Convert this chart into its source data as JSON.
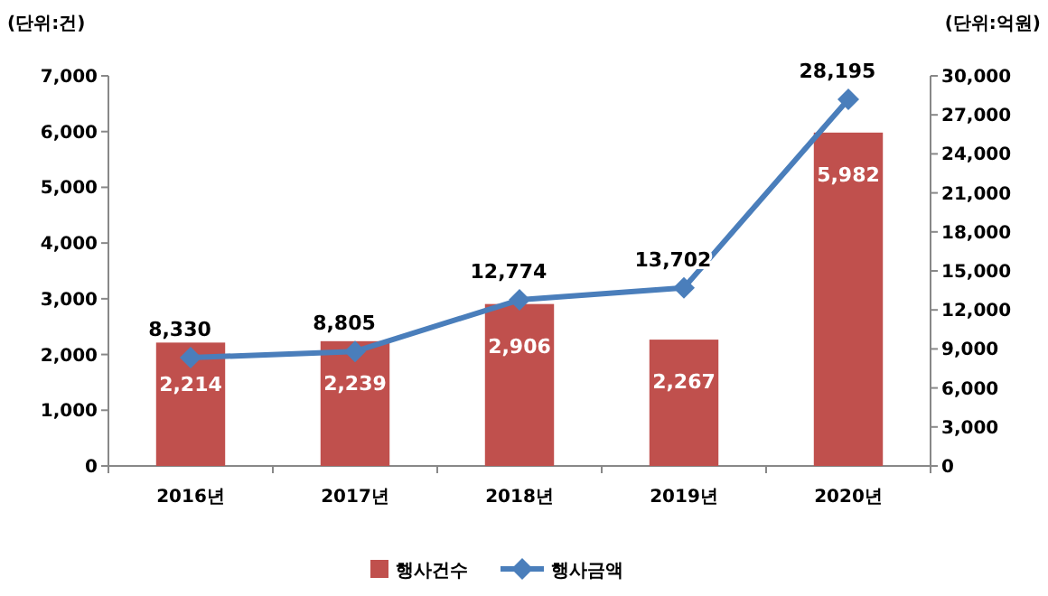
{
  "chart_data": {
    "type": "bar",
    "ylabel": "(단위:건)",
    "y2label": "(단위:억원)",
    "categories": [
      "2016년",
      "2017년",
      "2018년",
      "2019년",
      "2020년"
    ],
    "series": [
      {
        "name": "행사건수",
        "color": "#c0504d",
        "values": [
          2214,
          2239,
          2906,
          2267,
          5982
        ],
        "value_labels": [
          "2,214",
          "2,239",
          "2,906",
          "2,267",
          "5,982"
        ]
      },
      {
        "name": "행사금액",
        "type": "line",
        "axis": "y2",
        "color": "#4a7ebb",
        "values": [
          8330,
          8805,
          12774,
          13702,
          28195
        ],
        "value_labels": [
          "8,330",
          "8,805",
          "12,774",
          "13,702",
          "28,195"
        ]
      }
    ],
    "ylim": [
      0,
      7000
    ],
    "yticks": [
      0,
      {
        "value": 1000,
        "label": "1,000"
      },
      {
        "value": 2000,
        "label": "2,000"
      },
      {
        "value": 3000,
        "label": "3,000"
      },
      {
        "value": 4000,
        "label": "4,000"
      },
      {
        "value": 5000,
        "label": "5,000"
      },
      {
        "value": 6000,
        "label": "6,000"
      },
      {
        "value": 7000,
        "label": "7,000"
      }
    ],
    "y2lim": [
      0,
      30000
    ],
    "y2ticks": [
      0,
      {
        "value": 3000,
        "label": "3,000"
      },
      {
        "value": 6000,
        "label": "6,000"
      },
      {
        "value": 9000,
        "label": "9,000"
      },
      {
        "value": 12000,
        "label": "12,000"
      },
      {
        "value": 15000,
        "label": "15,000"
      },
      {
        "value": 18000,
        "label": "18,000"
      },
      {
        "value": 21000,
        "label": "21,000"
      },
      {
        "value": 24000,
        "label": "24,000"
      },
      {
        "value": 27000,
        "label": "27,000"
      },
      {
        "value": 30000,
        "label": "30,000"
      }
    ],
    "legend": "bottom",
    "marker": "diamond"
  }
}
